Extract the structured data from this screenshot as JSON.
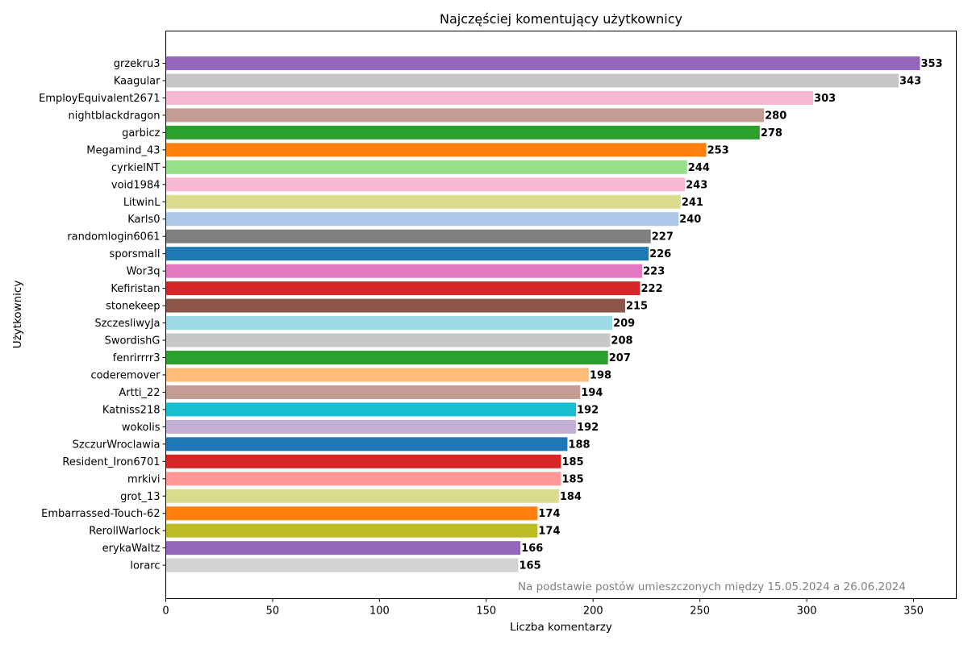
{
  "chart_data": {
    "type": "bar",
    "orientation": "horizontal",
    "title": "Najczęściej komentujący użytkownicy",
    "xlabel": "Liczba komentarzy",
    "ylabel": "Użytkownicy",
    "xlim": [
      0,
      370
    ],
    "xticks": [
      0,
      50,
      100,
      150,
      200,
      250,
      300,
      350
    ],
    "grid": false,
    "value_labels": true,
    "annotation": "Na podstawie postów umieszczonych między 15.05.2024 a 26.06.2024",
    "categories": [
      "grzekru3",
      "Kaagular",
      "EmployEquivalent2671",
      "nightblackdragon",
      "garbicz",
      "Megamind_43",
      "cyrkielNT",
      "void1984",
      "LitwinL",
      "Karls0",
      "randomlogin6061",
      "sporsmall",
      "Wor3q",
      "Kefiristan",
      "stonekeep",
      "SzczesliwyJa",
      "SwordishG",
      "fenrirrrr3",
      "coderemover",
      "Artti_22",
      "Katniss218",
      "wokolis",
      "SzczurWroclawia",
      "Resident_Iron6701",
      "mrkivi",
      "grot_13",
      "Embarrassed-Touch-62",
      "RerollWarlock",
      "erykaWaltz",
      "lorarc"
    ],
    "values": [
      353,
      343,
      303,
      280,
      278,
      253,
      244,
      243,
      241,
      240,
      227,
      226,
      223,
      222,
      215,
      209,
      208,
      207,
      198,
      194,
      192,
      192,
      188,
      185,
      185,
      184,
      174,
      174,
      166,
      165
    ],
    "colors": [
      "#9467bd",
      "#c7c7c7",
      "#f7b6d2",
      "#c49c94",
      "#2ca02c",
      "#ff7f0e",
      "#98df8a",
      "#f7b6d2",
      "#dbdb8d",
      "#aec7e8",
      "#7f7f7f",
      "#1f77b4",
      "#e377c2",
      "#d62728",
      "#8c564b",
      "#9edae5",
      "#c7c7c7",
      "#2ca02c",
      "#ffbb78",
      "#c49c94",
      "#17becf",
      "#c5b0d5",
      "#1f77b4",
      "#d62728",
      "#ff9896",
      "#dbdb8d",
      "#ff7f0e",
      "#bcbd22",
      "#9467bd",
      "#d3d3d3"
    ]
  }
}
